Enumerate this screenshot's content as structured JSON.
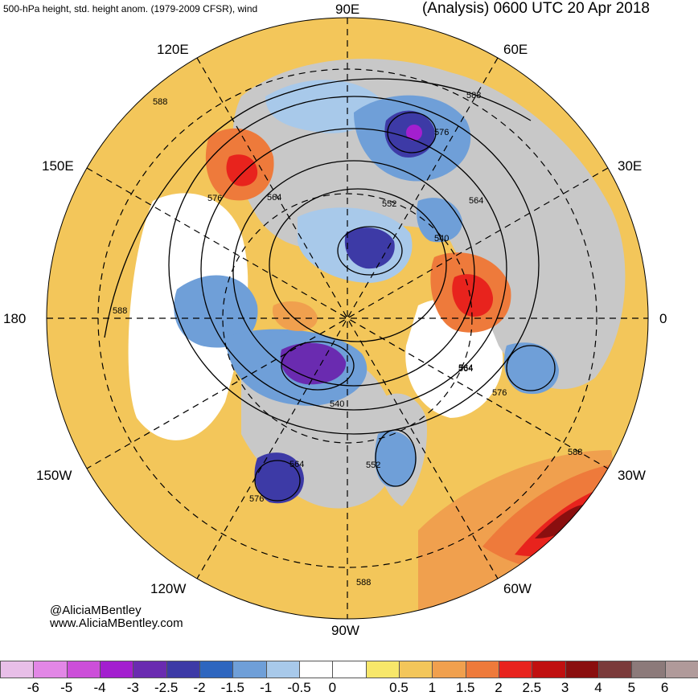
{
  "header": {
    "left_title": "500-hPa height, std. height anom. (1979-2009 CFSR), wind",
    "right_title": "(Analysis) 0600 UTC 20 Apr 2018"
  },
  "map": {
    "longitude_labels": [
      "90E",
      "60E",
      "30E",
      "0",
      "30W",
      "60W",
      "90W",
      "120W",
      "150W",
      "180",
      "150E",
      "120E"
    ],
    "contour_labels": [
      "588",
      "588",
      "576",
      "552",
      "564",
      "540",
      "576",
      "564",
      "588",
      "564",
      "576",
      "564",
      "552",
      "540",
      "576",
      "564",
      "588",
      "588"
    ],
    "colors": {
      "land": "#c8c8c8",
      "ocean_neutral": "#ffffff",
      "warm_anomaly": "#f3c65a",
      "strong_warm": "#e8231d",
      "cold_anomaly": "#6f9fd8",
      "strong_cold": "#3b2fa3"
    }
  },
  "credit": {
    "handle": "@AliciaMBentley",
    "website": "www.AliciaMBentley.com"
  },
  "colorbar": {
    "colors": [
      "#e8bfe8",
      "#e287e6",
      "#cc4fd9",
      "#a31fcf",
      "#6a2bb0",
      "#3d3aa6",
      "#2e66bf",
      "#6f9fd8",
      "#a8c9ea",
      "#ffffff",
      "#ffffff",
      "#f7e76a",
      "#f3c65a",
      "#f0a04e",
      "#ee7a3b",
      "#e8231d",
      "#c01010",
      "#8a0f0f",
      "#7a3a3a",
      "#8c7a7a",
      "#b09a9a"
    ],
    "ticks": [
      "-6",
      "-5",
      "-4",
      "-3",
      "-2.5",
      "-2",
      "-1.5",
      "-1",
      "-0.5",
      "0",
      "0.5",
      "1",
      "1.5",
      "2",
      "2.5",
      "3",
      "4",
      "5",
      "6"
    ]
  }
}
